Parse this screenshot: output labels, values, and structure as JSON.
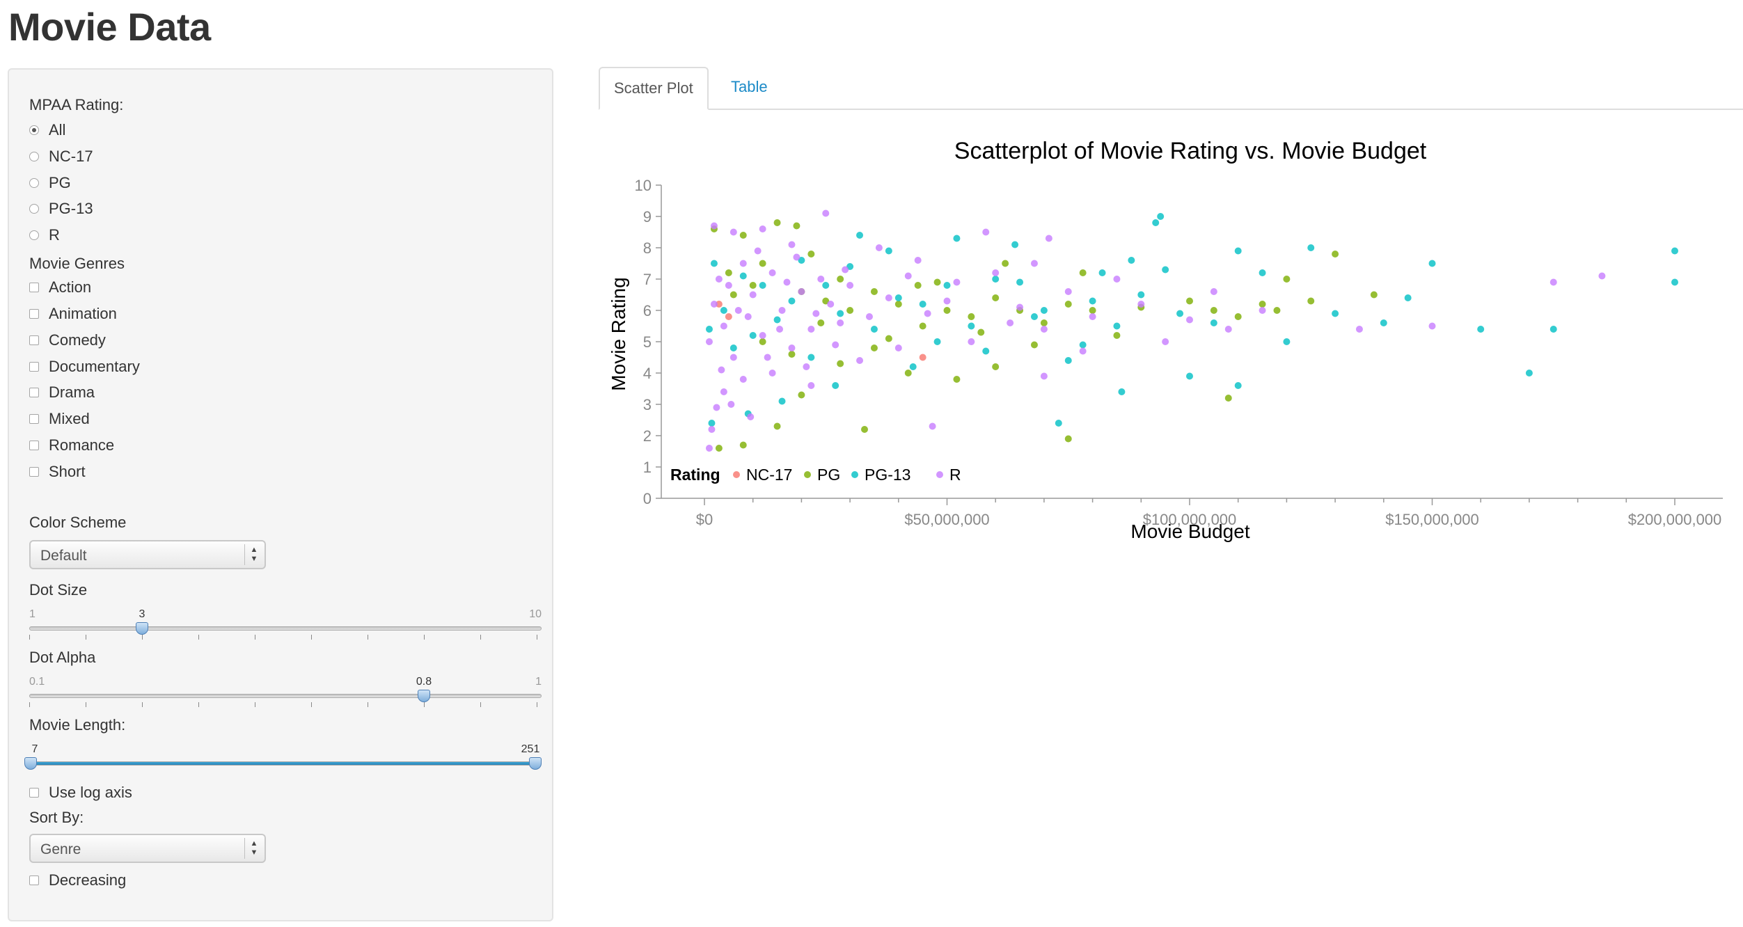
{
  "app": {
    "title": "Movie Data"
  },
  "sidebar": {
    "mpaa": {
      "label": "MPAA Rating:",
      "options": [
        "All",
        "NC-17",
        "PG",
        "PG-13",
        "R"
      ],
      "selected": "All"
    },
    "genres": {
      "label": "Movie Genres",
      "options": [
        "Action",
        "Animation",
        "Comedy",
        "Documentary",
        "Drama",
        "Mixed",
        "Romance",
        "Short"
      ]
    },
    "color_scheme": {
      "label": "Color Scheme",
      "value": "Default"
    },
    "dot_size": {
      "label": "Dot Size",
      "min": "1",
      "max": "10",
      "value": "3"
    },
    "dot_alpha": {
      "label": "Dot Alpha",
      "min": "0.1",
      "max": "1",
      "value": "0.8"
    },
    "movie_length": {
      "label": "Movie Length:",
      "low": "7",
      "high": "251"
    },
    "log_axis": {
      "label": "Use log axis",
      "checked": false
    },
    "sort_by": {
      "label": "Sort By:",
      "value": "Genre"
    },
    "decreasing": {
      "label": "Decreasing",
      "checked": false
    }
  },
  "tabs": [
    {
      "label": "Scatter Plot",
      "active": true
    },
    {
      "label": "Table",
      "active": false
    }
  ],
  "chart_data": {
    "type": "scatter",
    "title": "Scatterplot of  Movie Rating vs. Movie Budget",
    "xlabel": "Movie Budget",
    "ylabel": "Movie Rating",
    "xlim": [
      0,
      210000000
    ],
    "ylim": [
      0,
      10
    ],
    "x_ticks": [
      0,
      50000000,
      100000000,
      150000000,
      200000000
    ],
    "x_tick_labels": [
      "$0",
      "$50,000,000",
      "$100,000,000",
      "$150,000,000",
      "$200,000,000"
    ],
    "y_ticks": [
      0,
      1,
      2,
      3,
      4,
      5,
      6,
      7,
      8,
      9,
      10
    ],
    "y_tick_labels": [
      "0",
      "1",
      "2",
      "3",
      "4",
      "5",
      "6",
      "7",
      "8",
      "9",
      "10"
    ],
    "grid": false,
    "legend": {
      "title": "Rating",
      "position": "bottom-left"
    },
    "series": [
      {
        "name": "NC-17",
        "color": "#f8766d",
        "points": [
          [
            5000000,
            5.8
          ],
          [
            45000000,
            4.5
          ],
          [
            3000000,
            6.2
          ]
        ]
      },
      {
        "name": "PG",
        "color": "#7cae00",
        "points": [
          [
            2000000,
            8.6
          ],
          [
            8000000,
            8.4
          ],
          [
            15000000,
            8.8
          ],
          [
            19000000,
            8.7
          ],
          [
            5000000,
            7.2
          ],
          [
            10000000,
            6.8
          ],
          [
            20000000,
            6.6
          ],
          [
            25000000,
            6.3
          ],
          [
            30000000,
            6.0
          ],
          [
            35000000,
            6.6
          ],
          [
            40000000,
            6.2
          ],
          [
            45000000,
            5.5
          ],
          [
            50000000,
            6.0
          ],
          [
            55000000,
            5.8
          ],
          [
            60000000,
            6.4
          ],
          [
            65000000,
            6.0
          ],
          [
            70000000,
            5.6
          ],
          [
            75000000,
            6.2
          ],
          [
            80000000,
            6.0
          ],
          [
            90000000,
            6.1
          ],
          [
            100000000,
            6.3
          ],
          [
            105000000,
            6.0
          ],
          [
            110000000,
            5.8
          ],
          [
            115000000,
            6.2
          ],
          [
            120000000,
            7.0
          ],
          [
            125000000,
            6.3
          ],
          [
            130000000,
            7.8
          ],
          [
            138000000,
            6.5
          ],
          [
            12000000,
            5.0
          ],
          [
            18000000,
            4.6
          ],
          [
            28000000,
            4.3
          ],
          [
            35000000,
            4.8
          ],
          [
            42000000,
            4.0
          ],
          [
            52000000,
            3.8
          ],
          [
            60000000,
            4.2
          ],
          [
            75000000,
            1.9
          ],
          [
            3000000,
            1.6
          ],
          [
            8000000,
            1.7
          ],
          [
            108000000,
            3.2
          ],
          [
            33000000,
            2.2
          ],
          [
            20000000,
            3.3
          ],
          [
            15000000,
            2.3
          ],
          [
            24000000,
            5.6
          ],
          [
            48000000,
            6.9
          ],
          [
            62000000,
            7.5
          ],
          [
            78000000,
            7.2
          ],
          [
            85000000,
            5.2
          ],
          [
            68000000,
            4.9
          ],
          [
            57000000,
            5.3
          ],
          [
            38000000,
            5.1
          ],
          [
            22000000,
            7.8
          ],
          [
            12000000,
            7.5
          ],
          [
            6000000,
            6.5
          ],
          [
            28000000,
            7.0
          ],
          [
            44000000,
            6.8
          ],
          [
            118000000,
            6.0
          ]
        ]
      },
      {
        "name": "PG-13",
        "color": "#00bfc4",
        "points": [
          [
            200000000,
            7.9
          ],
          [
            200000000,
            6.9
          ],
          [
            175000000,
            5.4
          ],
          [
            170000000,
            4.0
          ],
          [
            160000000,
            5.4
          ],
          [
            150000000,
            7.5
          ],
          [
            140000000,
            5.6
          ],
          [
            145000000,
            6.4
          ],
          [
            130000000,
            5.9
          ],
          [
            125000000,
            8.0
          ],
          [
            120000000,
            5.0
          ],
          [
            110000000,
            7.9
          ],
          [
            110000000,
            3.6
          ],
          [
            115000000,
            7.2
          ],
          [
            100000000,
            3.9
          ],
          [
            95000000,
            7.3
          ],
          [
            94000000,
            9.0
          ],
          [
            93000000,
            8.8
          ],
          [
            90000000,
            6.5
          ],
          [
            85000000,
            5.5
          ],
          [
            82000000,
            7.2
          ],
          [
            80000000,
            6.3
          ],
          [
            78000000,
            4.9
          ],
          [
            75000000,
            4.4
          ],
          [
            70000000,
            6.0
          ],
          [
            68000000,
            5.8
          ],
          [
            65000000,
            6.9
          ],
          [
            60000000,
            7.0
          ],
          [
            55000000,
            5.5
          ],
          [
            50000000,
            6.8
          ],
          [
            48000000,
            5.0
          ],
          [
            45000000,
            6.2
          ],
          [
            40000000,
            6.4
          ],
          [
            35000000,
            5.4
          ],
          [
            30000000,
            7.4
          ],
          [
            28000000,
            5.9
          ],
          [
            25000000,
            6.8
          ],
          [
            22000000,
            4.5
          ],
          [
            20000000,
            7.6
          ],
          [
            18000000,
            6.3
          ],
          [
            15000000,
            5.7
          ],
          [
            12000000,
            6.8
          ],
          [
            10000000,
            5.2
          ],
          [
            8000000,
            7.1
          ],
          [
            6000000,
            4.8
          ],
          [
            4000000,
            6.0
          ],
          [
            2000000,
            7.5
          ],
          [
            1000000,
            5.4
          ],
          [
            86000000,
            3.4
          ],
          [
            73000000,
            2.4
          ],
          [
            105000000,
            5.6
          ],
          [
            98000000,
            5.9
          ],
          [
            88000000,
            7.6
          ],
          [
            64000000,
            8.1
          ],
          [
            52000000,
            8.3
          ],
          [
            38000000,
            7.9
          ],
          [
            32000000,
            8.4
          ],
          [
            58000000,
            4.7
          ],
          [
            43000000,
            4.2
          ],
          [
            27000000,
            3.6
          ],
          [
            16000000,
            3.1
          ],
          [
            9000000,
            2.7
          ],
          [
            1500000,
            2.4
          ]
        ]
      },
      {
        "name": "R",
        "color": "#c77cff",
        "points": [
          [
            1000000,
            5.0
          ],
          [
            2000000,
            6.2
          ],
          [
            3000000,
            7.0
          ],
          [
            4000000,
            5.5
          ],
          [
            5000000,
            6.8
          ],
          [
            6000000,
            4.5
          ],
          [
            7000000,
            6.0
          ],
          [
            8000000,
            7.5
          ],
          [
            9000000,
            5.8
          ],
          [
            10000000,
            6.5
          ],
          [
            12000000,
            5.2
          ],
          [
            14000000,
            7.2
          ],
          [
            16000000,
            6.0
          ],
          [
            18000000,
            4.8
          ],
          [
            20000000,
            6.6
          ],
          [
            22000000,
            5.4
          ],
          [
            24000000,
            7.0
          ],
          [
            26000000,
            6.2
          ],
          [
            28000000,
            5.6
          ],
          [
            30000000,
            6.8
          ],
          [
            34000000,
            5.8
          ],
          [
            38000000,
            6.4
          ],
          [
            42000000,
            7.1
          ],
          [
            46000000,
            5.9
          ],
          [
            50000000,
            6.3
          ],
          [
            55000000,
            5.0
          ],
          [
            60000000,
            7.2
          ],
          [
            65000000,
            6.1
          ],
          [
            70000000,
            5.4
          ],
          [
            75000000,
            6.6
          ],
          [
            80000000,
            5.8
          ],
          [
            85000000,
            7.0
          ],
          [
            90000000,
            6.2
          ],
          [
            100000000,
            5.7
          ],
          [
            105000000,
            6.6
          ],
          [
            115000000,
            6.0
          ],
          [
            135000000,
            5.4
          ],
          [
            150000000,
            5.5
          ],
          [
            175000000,
            6.9
          ],
          [
            185000000,
            7.1
          ],
          [
            25000000,
            9.1
          ],
          [
            12000000,
            8.6
          ],
          [
            2000000,
            8.7
          ],
          [
            6000000,
            8.5
          ],
          [
            1000000,
            1.6
          ],
          [
            1500000,
            2.2
          ],
          [
            2500000,
            2.9
          ],
          [
            4000000,
            3.4
          ],
          [
            8000000,
            3.8
          ],
          [
            14000000,
            4.0
          ],
          [
            22000000,
            3.6
          ],
          [
            70000000,
            3.9
          ],
          [
            47000000,
            2.3
          ],
          [
            58000000,
            8.5
          ],
          [
            71000000,
            8.3
          ],
          [
            36000000,
            8.0
          ],
          [
            18000000,
            8.1
          ],
          [
            3500000,
            4.1
          ],
          [
            5500000,
            3.0
          ],
          [
            9500000,
            2.6
          ],
          [
            11000000,
            7.9
          ],
          [
            13000000,
            4.5
          ],
          [
            15500000,
            5.4
          ],
          [
            17000000,
            6.9
          ],
          [
            19000000,
            7.7
          ],
          [
            21000000,
            4.2
          ],
          [
            23000000,
            5.9
          ],
          [
            27000000,
            4.9
          ],
          [
            29000000,
            7.3
          ],
          [
            32000000,
            4.4
          ],
          [
            40000000,
            4.8
          ],
          [
            44000000,
            7.6
          ],
          [
            52000000,
            6.9
          ],
          [
            63000000,
            5.6
          ],
          [
            68000000,
            7.5
          ],
          [
            78000000,
            4.7
          ],
          [
            95000000,
            5.0
          ],
          [
            108000000,
            5.4
          ]
        ]
      }
    ]
  }
}
